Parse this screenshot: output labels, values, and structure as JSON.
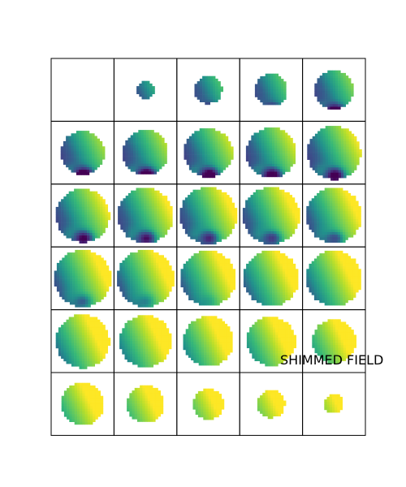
{
  "figure": {
    "label": "SHIMMED FIELD",
    "rows": 6,
    "cols": 5,
    "colormap": "viridis",
    "colors": {
      "low": "#440154",
      "mid": "#21918c",
      "high": "#fde725",
      "grid": "#000000",
      "background": "#ffffff"
    }
  }
}
